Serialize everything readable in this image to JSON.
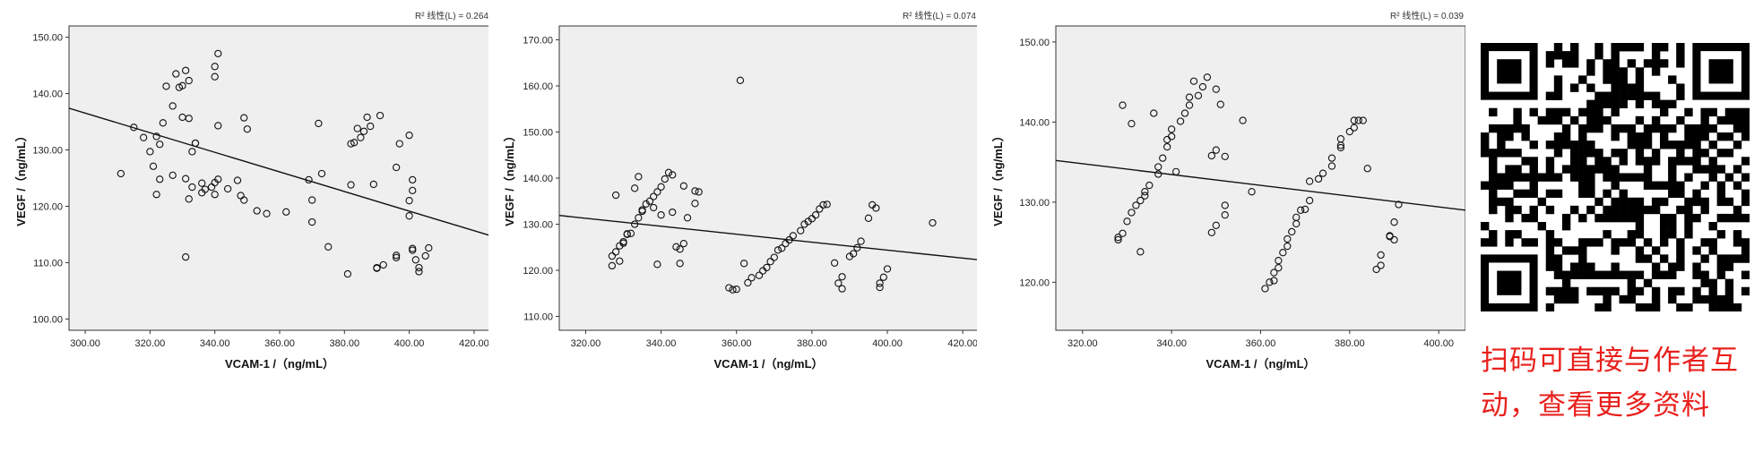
{
  "chart_data": [
    {
      "type": "scatter",
      "r2_label": "R² 线性(L) = 0.264",
      "xlabel": "VCAM-1 /（ng/mL）",
      "ylabel": "VEGF /（ng/mL）",
      "xlim": [
        295,
        425
      ],
      "ylim": [
        98,
        152
      ],
      "xticks": [
        "300.00",
        "320.00",
        "340.00",
        "360.00",
        "380.00",
        "400.00",
        "420.00"
      ],
      "xtick_values": [
        300,
        320,
        340,
        360,
        380,
        400,
        420
      ],
      "yticks": [
        "100.00",
        "110.00",
        "120.00",
        "130.00",
        "140.00",
        "150.00"
      ],
      "ytick_values": [
        100,
        110,
        120,
        130,
        140,
        150
      ],
      "fit_line": [
        [
          295,
          137.4
        ],
        [
          425,
          114.8
        ]
      ],
      "points": [
        [
          311,
          125.8
        ],
        [
          315,
          134.0
        ],
        [
          318,
          132.2
        ],
        [
          320,
          129.7
        ],
        [
          321,
          127.1
        ],
        [
          322,
          122.1
        ],
        [
          322,
          132.4
        ],
        [
          323,
          131.0
        ],
        [
          323,
          124.8
        ],
        [
          324,
          134.8
        ],
        [
          325,
          141.3
        ],
        [
          327,
          125.5
        ],
        [
          327,
          137.8
        ],
        [
          328,
          143.5
        ],
        [
          329,
          141.1
        ],
        [
          330,
          141.4
        ],
        [
          330,
          135.8
        ],
        [
          331,
          144.1
        ],
        [
          331,
          111.0
        ],
        [
          331,
          124.9
        ],
        [
          332,
          142.3
        ],
        [
          332,
          135.6
        ],
        [
          332,
          121.3
        ],
        [
          333,
          129.7
        ],
        [
          333,
          123.4
        ],
        [
          334,
          131.2
        ],
        [
          334,
          131.2
        ],
        [
          336,
          124.1
        ],
        [
          336,
          122.4
        ],
        [
          337,
          123.0
        ],
        [
          339,
          123.4
        ],
        [
          340,
          124.2
        ],
        [
          340,
          122.1
        ],
        [
          340,
          143.0
        ],
        [
          340,
          144.8
        ],
        [
          341,
          147.1
        ],
        [
          341,
          134.3
        ],
        [
          341,
          124.8
        ],
        [
          344,
          123.1
        ],
        [
          347,
          124.6
        ],
        [
          348,
          121.9
        ],
        [
          349,
          121.1
        ],
        [
          349,
          135.7
        ],
        [
          350,
          133.7
        ],
        [
          353,
          119.2
        ],
        [
          356,
          118.7
        ],
        [
          362,
          119.0
        ],
        [
          369,
          124.7
        ],
        [
          370,
          121.1
        ],
        [
          370,
          117.2
        ],
        [
          372,
          134.7
        ],
        [
          373,
          125.8
        ],
        [
          375,
          112.8
        ],
        [
          381,
          108.0
        ],
        [
          382,
          123.8
        ],
        [
          382,
          131.1
        ],
        [
          383,
          131.3
        ],
        [
          384,
          133.8
        ],
        [
          385,
          132.2
        ],
        [
          386,
          133.3
        ],
        [
          387,
          135.8
        ],
        [
          388,
          134.2
        ],
        [
          389,
          123.9
        ],
        [
          390,
          109.0
        ],
        [
          390,
          109.1
        ],
        [
          391,
          136.1
        ],
        [
          392,
          109.6
        ],
        [
          396,
          110.9
        ],
        [
          396,
          111.3
        ],
        [
          396,
          126.9
        ],
        [
          397,
          131.1
        ],
        [
          400,
          132.6
        ],
        [
          400,
          121.0
        ],
        [
          400,
          118.3
        ],
        [
          401,
          112.5
        ],
        [
          401,
          112.2
        ],
        [
          401,
          124.7
        ],
        [
          401,
          122.8
        ],
        [
          402,
          110.5
        ],
        [
          403,
          108.4
        ],
        [
          403,
          109.1
        ],
        [
          405,
          111.2
        ],
        [
          406,
          112.6
        ]
      ]
    },
    {
      "type": "scatter",
      "r2_label": "R² 线性(L) = 0.074",
      "xlabel": "VCAM-1 /（ng/mL）",
      "ylabel": "VEGF /（ng/mL）",
      "xlim": [
        313,
        424
      ],
      "ylim": [
        107,
        173
      ],
      "xticks": [
        "320.00",
        "340.00",
        "360.00",
        "380.00",
        "400.00",
        "420.00"
      ],
      "xtick_values": [
        320,
        340,
        360,
        380,
        400,
        420
      ],
      "yticks": [
        "110.00",
        "120.00",
        "130.00",
        "140.00",
        "150.00",
        "160.00",
        "170.00"
      ],
      "ytick_values": [
        110,
        120,
        130,
        140,
        150,
        160,
        170
      ],
      "fit_line": [
        [
          313,
          131.9
        ],
        [
          424,
          122.3
        ]
      ],
      "points": [
        [
          327,
          123.1
        ],
        [
          327,
          121.0
        ],
        [
          328,
          124.0
        ],
        [
          328,
          136.3
        ],
        [
          329,
          122.0
        ],
        [
          329,
          125.3
        ],
        [
          330,
          125.9
        ],
        [
          330,
          126.2
        ],
        [
          331,
          127.8
        ],
        [
          331,
          127.9
        ],
        [
          332,
          128.0
        ],
        [
          333,
          130.0
        ],
        [
          333,
          137.8
        ],
        [
          334,
          140.3
        ],
        [
          334,
          131.4
        ],
        [
          335,
          132.8
        ],
        [
          335,
          133.1
        ],
        [
          336,
          134.4
        ],
        [
          337,
          135.0
        ],
        [
          338,
          133.6
        ],
        [
          338,
          136.0
        ],
        [
          339,
          137.0
        ],
        [
          339,
          121.3
        ],
        [
          340,
          132.0
        ],
        [
          340,
          138.1
        ],
        [
          341,
          139.8
        ],
        [
          342,
          141.2
        ],
        [
          343,
          132.6
        ],
        [
          343,
          140.7
        ],
        [
          344,
          125.1
        ],
        [
          345,
          121.5
        ],
        [
          345,
          124.6
        ],
        [
          346,
          125.8
        ],
        [
          346,
          138.3
        ],
        [
          347,
          131.4
        ],
        [
          349,
          134.5
        ],
        [
          349,
          137.2
        ],
        [
          350,
          137.0
        ],
        [
          358,
          116.2
        ],
        [
          359,
          115.8
        ],
        [
          360,
          115.9
        ],
        [
          361,
          161.2
        ],
        [
          362,
          121.5
        ],
        [
          363,
          117.3
        ],
        [
          364,
          118.4
        ],
        [
          366,
          118.9
        ],
        [
          367,
          119.9
        ],
        [
          368,
          120.6
        ],
        [
          369,
          121.9
        ],
        [
          370,
          122.8
        ],
        [
          371,
          124.4
        ],
        [
          372,
          124.8
        ],
        [
          373,
          125.8
        ],
        [
          374,
          126.6
        ],
        [
          375,
          127.5
        ],
        [
          377,
          128.6
        ],
        [
          378,
          130.0
        ],
        [
          379,
          130.6
        ],
        [
          380,
          131.2
        ],
        [
          381,
          132.0
        ],
        [
          382,
          133.3
        ],
        [
          383,
          134.2
        ],
        [
          384,
          134.3
        ],
        [
          386,
          121.6
        ],
        [
          387,
          117.2
        ],
        [
          388,
          116.0
        ],
        [
          388,
          118.6
        ],
        [
          390,
          123.0
        ],
        [
          391,
          123.6
        ],
        [
          392,
          124.9
        ],
        [
          393,
          126.3
        ],
        [
          395,
          131.3
        ],
        [
          396,
          134.2
        ],
        [
          397,
          133.5
        ],
        [
          398,
          117.2
        ],
        [
          398,
          116.3
        ],
        [
          399,
          118.5
        ],
        [
          400,
          120.3
        ],
        [
          412,
          130.3
        ]
      ]
    },
    {
      "type": "scatter",
      "r2_label": "R² 线性(L) = 0.039",
      "xlabel": "VCAM-1 /（ng/mL）",
      "ylabel": "VEGF /（ng/mL）",
      "xlim": [
        314,
        406
      ],
      "ylim": [
        114,
        152
      ],
      "xticks": [
        "320.00",
        "340.00",
        "360.00",
        "380.00",
        "400.00"
      ],
      "xtick_values": [
        320,
        340,
        360,
        380,
        400
      ],
      "yticks": [
        "120.00",
        "130.00",
        "140.00",
        "150.00"
      ],
      "ytick_values": [
        120,
        130,
        140,
        150
      ],
      "fit_line": [
        [
          314,
          135.2
        ],
        [
          406,
          129.0
        ]
      ],
      "points": [
        [
          328,
          125.3
        ],
        [
          328,
          125.6
        ],
        [
          329,
          126.1
        ],
        [
          329,
          142.1
        ],
        [
          330,
          127.6
        ],
        [
          331,
          139.8
        ],
        [
          331,
          128.7
        ],
        [
          332,
          129.6
        ],
        [
          333,
          123.8
        ],
        [
          333,
          130.2
        ],
        [
          334,
          131.3
        ],
        [
          334,
          130.8
        ],
        [
          335,
          132.1
        ],
        [
          336,
          141.1
        ],
        [
          337,
          133.5
        ],
        [
          337,
          134.4
        ],
        [
          338,
          135.5
        ],
        [
          339,
          136.9
        ],
        [
          339,
          137.8
        ],
        [
          340,
          138.2
        ],
        [
          340,
          139.1
        ],
        [
          341,
          133.8
        ],
        [
          342,
          140.1
        ],
        [
          343,
          141.1
        ],
        [
          344,
          142.1
        ],
        [
          344,
          143.1
        ],
        [
          345,
          145.1
        ],
        [
          346,
          143.3
        ],
        [
          347,
          144.4
        ],
        [
          348,
          145.6
        ],
        [
          349,
          126.2
        ],
        [
          349,
          135.8
        ],
        [
          350,
          127.1
        ],
        [
          350,
          136.5
        ],
        [
          350,
          144.1
        ],
        [
          351,
          142.2
        ],
        [
          352,
          128.4
        ],
        [
          352,
          129.6
        ],
        [
          352,
          135.7
        ],
        [
          356,
          140.2
        ],
        [
          358,
          131.3
        ],
        [
          361,
          119.2
        ],
        [
          362,
          120.0
        ],
        [
          363,
          120.2
        ],
        [
          363,
          121.2
        ],
        [
          364,
          121.8
        ],
        [
          364,
          122.7
        ],
        [
          365,
          123.7
        ],
        [
          366,
          124.5
        ],
        [
          366,
          125.4
        ],
        [
          367,
          126.3
        ],
        [
          368,
          127.3
        ],
        [
          368,
          128.1
        ],
        [
          369,
          129.0
        ],
        [
          370,
          129.1
        ],
        [
          371,
          130.2
        ],
        [
          371,
          132.6
        ],
        [
          373,
          132.9
        ],
        [
          374,
          133.6
        ],
        [
          376,
          134.5
        ],
        [
          376,
          135.5
        ],
        [
          378,
          136.8
        ],
        [
          378,
          137.1
        ],
        [
          378,
          137.9
        ],
        [
          380,
          138.8
        ],
        [
          381,
          139.3
        ],
        [
          381,
          140.2
        ],
        [
          382,
          140.2
        ],
        [
          383,
          140.2
        ],
        [
          384,
          134.2
        ],
        [
          386,
          121.6
        ],
        [
          387,
          122.1
        ],
        [
          387,
          123.4
        ],
        [
          389,
          125.7
        ],
        [
          389,
          125.8
        ],
        [
          390,
          125.3
        ],
        [
          390,
          127.5
        ],
        [
          391,
          129.7
        ]
      ]
    }
  ],
  "promo": {
    "qr_icon": "qr-code-icon",
    "caption": "扫码可直接与作者互动，查看更多资料"
  }
}
